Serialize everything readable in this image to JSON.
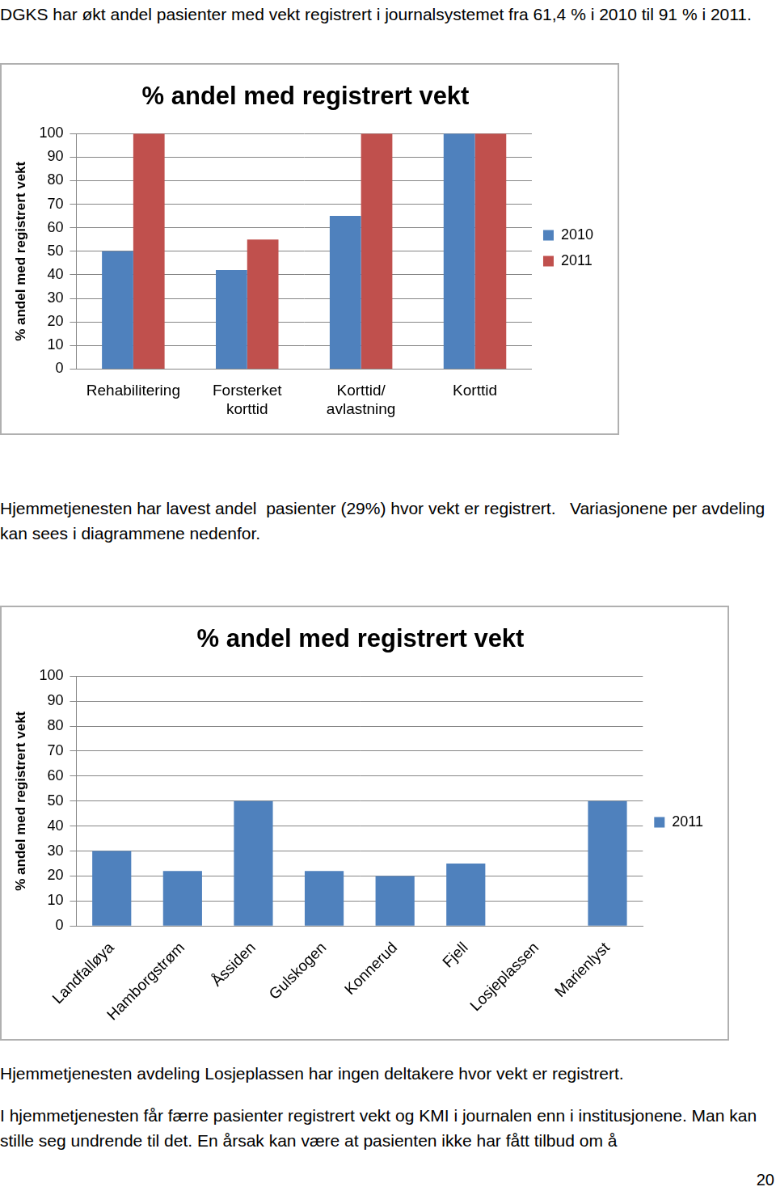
{
  "document": {
    "paragraphs": [
      "DGKS har økt andel pasienter med vekt registrert i journalsystemet fra 61,4 % i 2010 til 91 % i 2011.",
      "Hjemmetjenesten har lavest andel  pasienter (29%) hvor vekt er registrert.   Variasjonene per avdeling kan sees i diagrammene nedenfor.",
      "Hjemmetjenesten avdeling Losjeplassen har ingen deltakere hvor vekt er registrert.",
      "I hjemmetjenesten får færre pasienter registrert vekt og KMI i journalen enn i institusjonene. Man kan stille seg undrende til det. En årsak kan være at pasienten ikke har fått tilbud om å"
    ],
    "page_number": 20
  },
  "chart_data": [
    {
      "type": "bar",
      "title": "% andel med registrert vekt",
      "y_label": "% andel med registrert vekt",
      "categories": [
        "Rehabilitering",
        "Forsterket korttid",
        "Korttid/ avlastning",
        "Korttid"
      ],
      "series": [
        {
          "name": "2010",
          "color": "#4f81bd",
          "values": [
            50,
            42,
            65,
            100
          ]
        },
        {
          "name": "2011",
          "color": "#c0504d",
          "values": [
            100,
            55,
            100,
            100
          ]
        }
      ],
      "ylim": [
        0,
        100
      ],
      "yticks": [
        0,
        10,
        20,
        30,
        40,
        50,
        60,
        70,
        80,
        90,
        100
      ],
      "grid": true,
      "legend": "right"
    },
    {
      "type": "bar",
      "title": "% andel med registrert vekt",
      "y_label": "% andel med registrert vekt",
      "categories": [
        "Landfalløya",
        "Hamborgstrøm",
        "Åssiden",
        "Gulskogen",
        "Konnerud",
        "Fjell",
        "Losjeplassen",
        "Marienlyst"
      ],
      "series": [
        {
          "name": "2011",
          "color": "#4f81bd",
          "values": [
            30,
            22,
            50,
            22,
            20,
            25,
            0,
            50
          ]
        }
      ],
      "ylim": [
        0,
        100
      ],
      "yticks": [
        0,
        10,
        20,
        30,
        40,
        50,
        60,
        70,
        80,
        90,
        100
      ],
      "grid": true,
      "legend": "right"
    }
  ]
}
